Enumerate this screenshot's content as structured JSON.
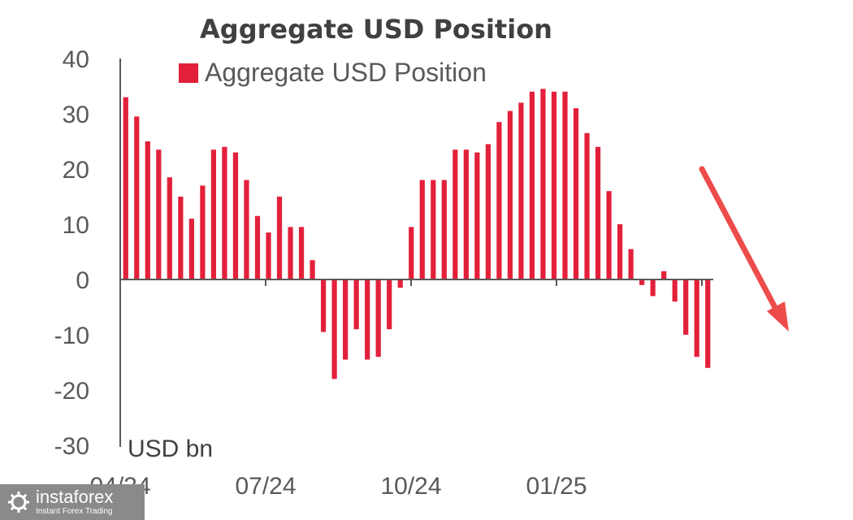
{
  "chart_data": {
    "type": "bar",
    "title": "Aggregate USD Position",
    "legend": [
      "Aggregate USD Position"
    ],
    "legend_position": "top",
    "unit_label": "USD bn",
    "ylim": [
      -30,
      40
    ],
    "yticks": [
      "40",
      "30",
      "20",
      "10",
      "0",
      "-10",
      "-20",
      "-30"
    ],
    "xticks": [
      "04/24",
      "07/24",
      "10/24",
      "01/25"
    ],
    "grid": false,
    "bar_color": "#e3203a",
    "series": [
      {
        "name": "Aggregate USD Position",
        "values": [
          33,
          29.5,
          25,
          23.5,
          18.5,
          15,
          11,
          17,
          23.5,
          24,
          23,
          18,
          11.5,
          8.5,
          15,
          9.5,
          9.5,
          3.5,
          -9.5,
          -18,
          -14.5,
          -9,
          -14.5,
          -14,
          -9,
          -1.5,
          9.5,
          18,
          18,
          18,
          23.5,
          23.5,
          23,
          24.5,
          28.5,
          30.5,
          32,
          34,
          34.5,
          34,
          34,
          31,
          26.5,
          24,
          16,
          10,
          5.5,
          -1,
          -3,
          1.5,
          -4,
          -10,
          -14,
          -16
        ]
      }
    ],
    "annotation": "downward-trend-arrow"
  },
  "watermark": {
    "brand": "instaforex",
    "tagline": "Instant Forex Trading"
  },
  "colors": {
    "bars": "#e3203a",
    "arrow": "#ee4b4b",
    "axis": "#595959",
    "watermark_bg": "#8a8a8a"
  }
}
